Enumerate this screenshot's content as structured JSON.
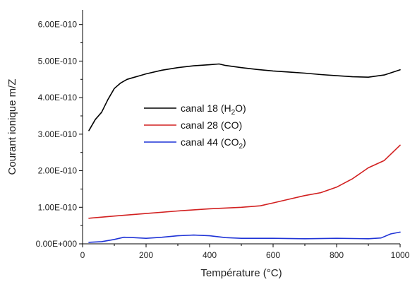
{
  "chart_data": {
    "type": "line",
    "xlabel": "Température (°C)",
    "ylabel": "Courant ionique m/Z",
    "xlim": [
      0,
      1000
    ],
    "ylim": [
      0,
      6.4e-10
    ],
    "x_ticks": [
      0,
      200,
      400,
      600,
      800,
      1000
    ],
    "x_tick_labels": [
      "0",
      "200",
      "400",
      "600",
      "800",
      "1000"
    ],
    "y_ticks": [
      0,
      1e-10,
      2e-10,
      3e-10,
      4e-10,
      5e-10,
      6e-10
    ],
    "y_tick_labels": [
      "0.00E+000",
      "1.00E-010",
      "2.00E-010",
      "3.00E-010",
      "4.00E-010",
      "5.00E-010",
      "6.00E-010"
    ],
    "grid": false,
    "legend_position": "center-left",
    "series": [
      {
        "name": "canal 18 (H2O)",
        "legend_prefix": "canal 18 (H",
        "legend_sub": "2",
        "legend_suffix": "O)",
        "color": "#000000",
        "x": [
          20,
          40,
          60,
          80,
          100,
          120,
          140,
          160,
          180,
          200,
          250,
          300,
          350,
          400,
          430,
          450,
          500,
          550,
          600,
          650,
          700,
          750,
          800,
          850,
          900,
          950,
          1000
        ],
        "y": [
          3.1e-10,
          3.4e-10,
          3.6e-10,
          3.95e-10,
          4.25e-10,
          4.4e-10,
          4.5e-10,
          4.55e-10,
          4.6e-10,
          4.65e-10,
          4.75e-10,
          4.82e-10,
          4.87e-10,
          4.9e-10,
          4.92e-10,
          4.88e-10,
          4.82e-10,
          4.77e-10,
          4.73e-10,
          4.7e-10,
          4.67e-10,
          4.63e-10,
          4.6e-10,
          4.57e-10,
          4.56e-10,
          4.62e-10,
          4.76e-10
        ]
      },
      {
        "name": "canal 28 (CO)",
        "legend_prefix": "canal 28 (CO)",
        "legend_sub": "",
        "legend_suffix": "",
        "color": "#d22020",
        "x": [
          20,
          100,
          200,
          300,
          400,
          500,
          560,
          600,
          650,
          700,
          750,
          800,
          850,
          900,
          950,
          1000
        ],
        "y": [
          7e-11,
          7.6e-11,
          8.3e-11,
          9e-11,
          9.6e-11,
          1e-10,
          1.04e-10,
          1.12e-10,
          1.22e-10,
          1.32e-10,
          1.4e-10,
          1.55e-10,
          1.78e-10,
          2.08e-10,
          2.28e-10,
          2.7e-10
        ]
      },
      {
        "name": "canal 44 (CO2)",
        "legend_prefix": "canal 44 (CO",
        "legend_sub": "2",
        "legend_suffix": ")",
        "color": "#1f33d6",
        "x": [
          20,
          60,
          100,
          130,
          160,
          200,
          250,
          300,
          350,
          400,
          450,
          500,
          600,
          700,
          800,
          900,
          940,
          970,
          1000
        ],
        "y": [
          4e-12,
          6e-12,
          1.2e-11,
          1.8e-11,
          1.7e-11,
          1.5e-11,
          1.8e-11,
          2.2e-11,
          2.4e-11,
          2.2e-11,
          1.7e-11,
          1.5e-11,
          1.5e-11,
          1.4e-11,
          1.5e-11,
          1.4e-11,
          1.6e-11,
          2.7e-11,
          3.2e-11
        ]
      }
    ]
  }
}
